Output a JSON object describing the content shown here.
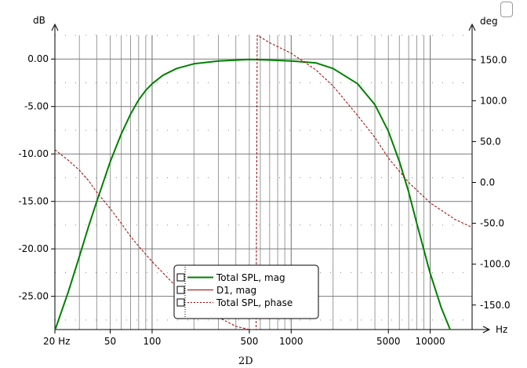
{
  "caption": "2D",
  "chart_data": {
    "type": "line",
    "title": "",
    "x_axis": {
      "label": "Hz",
      "scale": "log",
      "range": [
        20,
        20000
      ],
      "ticks": [
        20,
        50,
        100,
        500,
        1000,
        5000,
        10000
      ],
      "tick_labels": [
        "20 Hz",
        "50",
        "100",
        "500",
        "1000",
        "5000",
        "10000"
      ]
    },
    "y_axis_left": {
      "label": "dB",
      "range": [
        -28.5,
        2.5
      ],
      "ticks": [
        0,
        -5,
        -10,
        -15,
        -20,
        -25
      ],
      "tick_labels": [
        "0.00",
        "-5.00",
        "-10.00",
        "-15.00",
        "-20.00",
        "-25.00"
      ]
    },
    "y_axis_right": {
      "label": "deg",
      "ticks": [
        150,
        100,
        50,
        0,
        -50,
        -100,
        -150
      ],
      "tick_labels": [
        "150.0",
        "100.0",
        "50.0",
        "0.0",
        "-50.0",
        "-100.0",
        "-150.0"
      ],
      "range": [
        -180,
        180
      ]
    },
    "grid": true,
    "legend_placement": "bottom-center",
    "series": [
      {
        "name": "Total SPL, mag",
        "axis": "left",
        "color": "#008000",
        "style": "solid",
        "x": [
          20,
          25,
          30,
          35,
          40,
          50,
          60,
          70,
          80,
          90,
          100,
          120,
          150,
          200,
          300,
          500,
          700,
          1000,
          1500,
          2000,
          3000,
          4000,
          5000,
          6000,
          7000,
          8000,
          10000,
          12000,
          14000
        ],
        "y": [
          -28.6,
          -24.5,
          -20.8,
          -17.6,
          -15.0,
          -10.8,
          -7.9,
          -5.8,
          -4.3,
          -3.3,
          -2.6,
          -1.7,
          -1.0,
          -0.5,
          -0.2,
          -0.05,
          -0.1,
          -0.2,
          -0.4,
          -1.0,
          -2.6,
          -4.8,
          -7.6,
          -10.8,
          -14.0,
          -17.3,
          -22.6,
          -26.2,
          -28.6
        ]
      },
      {
        "name": "D1, mag",
        "axis": "left",
        "color": "#a00000",
        "style": "solid",
        "x": [],
        "y": []
      },
      {
        "name": "Total SPL, phase",
        "axis": "right",
        "color": "#a00000",
        "style": "dashed",
        "x": [
          20,
          25,
          30,
          35,
          40,
          50,
          60,
          70,
          80,
          100,
          150,
          200,
          300,
          400,
          500,
          560,
          570,
          700,
          1000,
          1500,
          2000,
          3000,
          4000,
          5000,
          7000,
          10000,
          15000,
          20000
        ],
        "y": [
          40,
          27,
          15,
          2,
          -12,
          -32,
          -50,
          -66,
          -78,
          -97,
          -128,
          -145,
          -165,
          -176,
          -180,
          -180,
          180,
          171,
          158,
          138,
          118,
          82,
          55,
          30,
          0,
          -25,
          -45,
          -55
        ]
      }
    ]
  },
  "legend": [
    {
      "label": "Total SPL, mag"
    },
    {
      "label": "D1, mag"
    },
    {
      "label": "Total SPL, phase"
    }
  ]
}
